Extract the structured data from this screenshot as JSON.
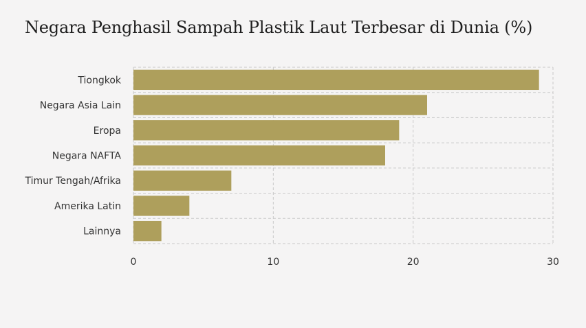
{
  "title": "Negara Penghasil Sampah Plastik Laut Terbesar di Dunia (%)",
  "chart_data": {
    "type": "bar",
    "orientation": "horizontal",
    "title": "Negara Penghasil Sampah Plastik Laut Terbesar di Dunia (%)",
    "categories": [
      "Tiongkok",
      "Negara Asia Lain",
      "Eropa",
      "Negara NAFTA",
      "Timur Tengah/Afrika",
      "Amerika Latin",
      "Lainnya"
    ],
    "values": [
      29,
      21,
      19,
      18,
      7,
      4,
      2
    ],
    "xlim": [
      0,
      30
    ],
    "xticks": [
      0,
      10,
      20,
      30
    ],
    "xlabel": "",
    "ylabel": "",
    "grid": true,
    "bar_color": "#ae9f5c",
    "grid_color": "#c9c9c9",
    "background": "#f5f4f4"
  }
}
